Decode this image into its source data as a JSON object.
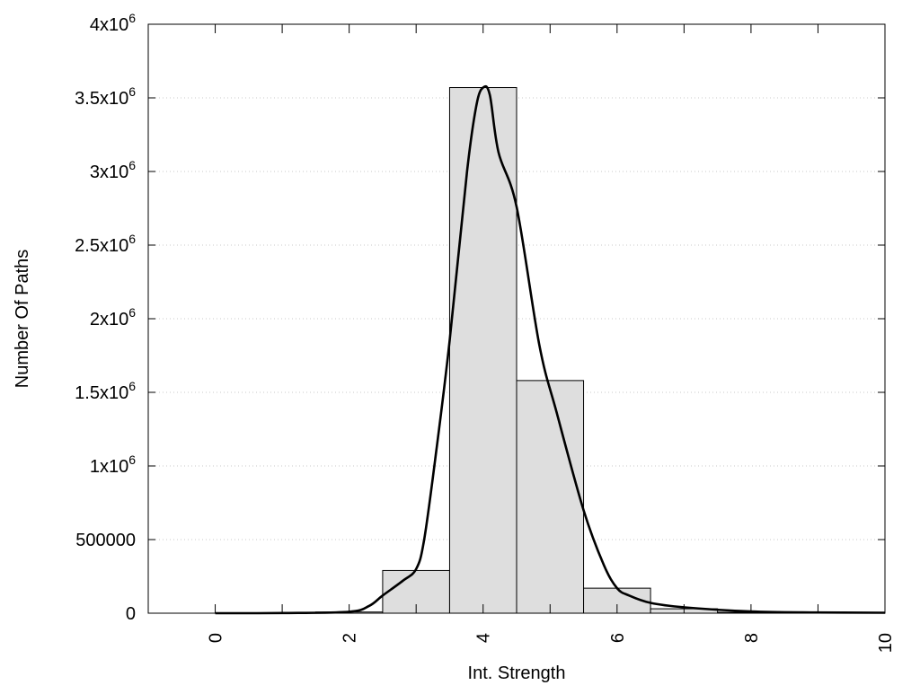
{
  "chart_data": {
    "type": "bar",
    "title": "",
    "xlabel": "Int. Strength",
    "ylabel": "Number Of Paths",
    "xlim": [
      -1,
      10
    ],
    "ylim": [
      0,
      4000000
    ],
    "grid": "horizontal dotted",
    "x_ticks": [
      0,
      2,
      4,
      6,
      8,
      10
    ],
    "x_tick_labels": [
      "0",
      "2",
      "4",
      "6",
      "8",
      "10"
    ],
    "x_minor_ticks": [
      1,
      3,
      5,
      7,
      9
    ],
    "y_ticks": [
      0,
      500000,
      1000000,
      1500000,
      2000000,
      2500000,
      3000000,
      3500000,
      4000000
    ],
    "y_tick_labels": [
      {
        "base": "0",
        "exp": ""
      },
      {
        "base": "500000",
        "exp": ""
      },
      {
        "base": "1x10",
        "exp": "6"
      },
      {
        "base": "1.5x10",
        "exp": "6"
      },
      {
        "base": "2x10",
        "exp": "6"
      },
      {
        "base": "2.5x10",
        "exp": "6"
      },
      {
        "base": "3x10",
        "exp": "6"
      },
      {
        "base": "3.5x10",
        "exp": "6"
      },
      {
        "base": "4x10",
        "exp": "6"
      }
    ],
    "bars": {
      "bin_width": 1,
      "centers": [
        0,
        1,
        2,
        3,
        4,
        5,
        6,
        7,
        8,
        9
      ],
      "values": [
        0,
        1000,
        8000,
        290000,
        3570000,
        1580000,
        170000,
        30000,
        6000,
        2000
      ],
      "fill": "#dedede",
      "stroke": "#000000"
    },
    "curve": {
      "x": [
        0,
        1,
        2,
        2.3,
        2.5,
        2.8,
        3.0,
        3.12,
        3.3,
        3.5,
        3.76,
        3.9,
        4.0,
        4.1,
        4.23,
        4.5,
        4.84,
        5.1,
        5.5,
        5.8,
        6.0,
        6.18,
        6.5,
        7,
        8,
        9,
        10
      ],
      "y": [
        0,
        1000,
        10000,
        50000,
        120000,
        220000,
        300000,
        500000,
        1100000,
        1850000,
        3000000,
        3450000,
        3570000,
        3520000,
        3130000,
        2760000,
        1820000,
        1360000,
        700000,
        330000,
        170000,
        120000,
        70000,
        40000,
        12000,
        5000,
        3000
      ],
      "color": "#000000"
    }
  }
}
